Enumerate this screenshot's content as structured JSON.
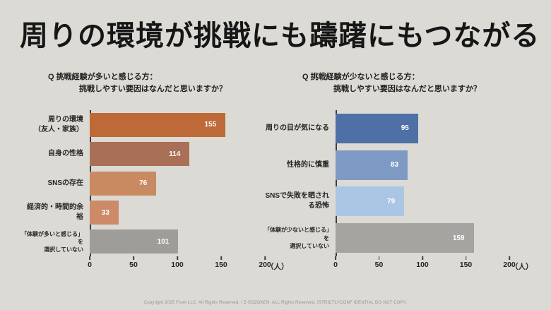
{
  "slide": {
    "title": "周りの環境が挑戦にも躊躇にもつながる",
    "background": "#DBDAD5",
    "footer": "Copyright 2025 From LLC. All Rights Reserved. / Z-SOZOKEN. ALL Rights Reserved. ISTRICTLYCONF IDENTIAL DO NOT COPY."
  },
  "chart_data": [
    {
      "type": "bar",
      "orientation": "horizontal",
      "question_line1": "Q 挑戦経験が多いと感じる方：",
      "question_line2": "挑戦しやすい要因はなんだと思いますか？",
      "categories": [
        "周りの環境\n（友人・家族）",
        "自身の性格",
        "SNSの存在",
        "経済的・時間的余裕",
        "「体験が多いと感じる」を\n選択していない"
      ],
      "values": [
        155,
        114,
        76,
        33,
        101
      ],
      "colors": [
        "#BE6A38",
        "#A97057",
        "#C98A62",
        "#CD8A68",
        "#9E9D9A"
      ],
      "xlim": [
        0,
        200
      ],
      "ticks": [
        0,
        50,
        100,
        150,
        200
      ],
      "unit": "（人）",
      "grid": false,
      "legend": false
    },
    {
      "type": "bar",
      "orientation": "horizontal",
      "question_line1": "Q 挑戦経験が少ないと感じる方：",
      "question_line2": "挑戦しやすい要因はなんだと思いますか？",
      "categories": [
        "周りの目が気になる",
        "性格的に慎重",
        "SNSで失敗を晒される恐怖",
        "「体験が少ないと感じる」を\n選択していない"
      ],
      "values": [
        95,
        83,
        79,
        159
      ],
      "colors": [
        "#4E70A6",
        "#7E9AC4",
        "#ABC6E4",
        "#A5A4A1"
      ],
      "xlim": [
        0,
        200
      ],
      "ticks": [
        0,
        50,
        100,
        150,
        200
      ],
      "unit": "（人）",
      "grid": false,
      "legend": false
    }
  ]
}
